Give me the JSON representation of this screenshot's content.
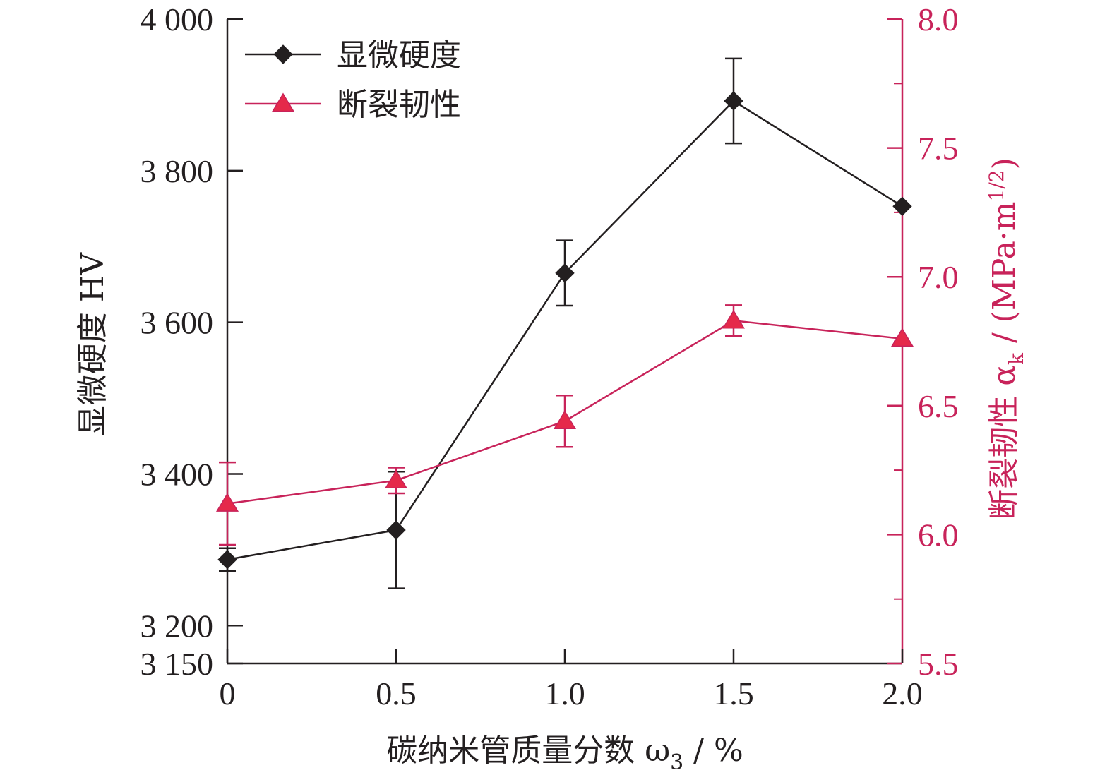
{
  "chart_data": {
    "type": "line",
    "x": [
      0,
      0.5,
      1.0,
      1.5,
      2.0
    ],
    "x_tick_labels": [
      "0",
      "0.5",
      "1.0",
      "1.5",
      "2.0"
    ],
    "xlim": [
      0,
      2.0
    ],
    "xlabel": "碳纳米管质量分数 ω",
    "xlabel_sub": "3",
    "xlabel_unit": " / %",
    "ylabel_left": "显微硬度 HV",
    "ylim_left": [
      3150,
      4000
    ],
    "y_ticks_left": [
      3150,
      3200,
      3400,
      3600,
      3800,
      4000
    ],
    "y_tick_labels_left": [
      "3 150",
      "3 200",
      "3 400",
      "3 600",
      "3 800",
      "4 000"
    ],
    "ylabel_right": "断裂韧性 α",
    "ylabel_right_sub": "k",
    "ylabel_right_unit": " / (MPa·m",
    "ylabel_right_sup": "1/2",
    "ylabel_right_close": ")",
    "ylim_right": [
      5.5,
      8.0
    ],
    "y_ticks_right": [
      5.5,
      6.0,
      6.5,
      7.0,
      7.5,
      8.0
    ],
    "y_tick_labels_right": [
      "5.5",
      "6.0",
      "6.5",
      "7.0",
      "7.5",
      "8.0"
    ],
    "legend_position": "top-left",
    "grid": false,
    "colors": {
      "hardness": "#231f20",
      "toughness": "#c8235a",
      "toughness_fill": "#e5294a"
    },
    "series": [
      {
        "name": "显微硬度",
        "axis": "left",
        "marker": "diamond",
        "values": [
          3287,
          3326,
          3665,
          3892,
          3753
        ],
        "error": [
          15,
          77,
          43,
          56,
          0
        ]
      },
      {
        "name": "断裂韧性",
        "axis": "right",
        "marker": "triangle",
        "values": [
          6.12,
          6.21,
          6.44,
          6.83,
          6.76
        ],
        "error": [
          0.16,
          0.05,
          0.1,
          0.06,
          0
        ]
      }
    ]
  }
}
